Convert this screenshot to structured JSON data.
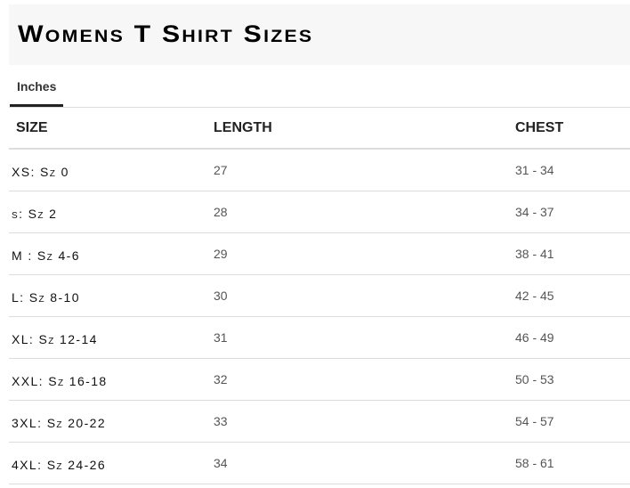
{
  "title": "Womens T Shirt Sizes",
  "tabs": [
    {
      "label": "Inches",
      "active": true
    }
  ],
  "table": {
    "headers": [
      "SIZE",
      "LENGTH",
      "CHEST"
    ],
    "rows": [
      [
        "XS: Sz 0",
        "27",
        "31 - 34"
      ],
      [
        "s: Sz 2",
        "28",
        "34 - 37"
      ],
      [
        "M : Sz 4-6",
        "29",
        "38 - 41"
      ],
      [
        "L: Sz 8-10",
        "30",
        "42 - 45"
      ],
      [
        "XL: Sz 12-14",
        "31",
        "46 - 49"
      ],
      [
        "XXL: Sz 16-18",
        "32",
        "50 - 53"
      ],
      [
        "3XL: Sz 20-22",
        "33",
        "54 - 57"
      ],
      [
        "4XL: Sz 24-26",
        "34",
        "58 - 61"
      ]
    ]
  }
}
